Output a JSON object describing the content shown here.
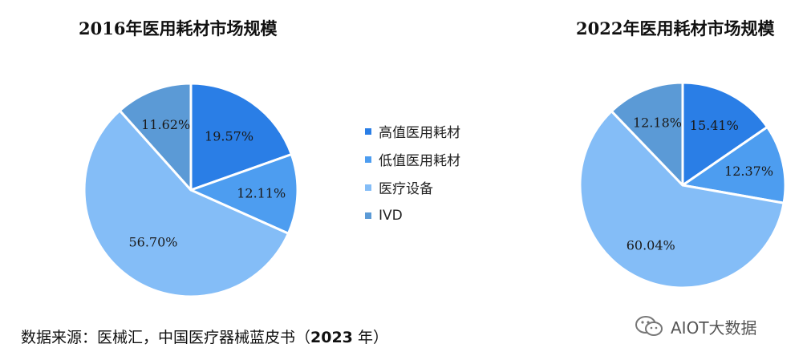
{
  "colors": {
    "high_value": "#2a7ee6",
    "low_value": "#4d9df0",
    "equipment": "#84bdf7",
    "ivd": "#5b9ad6"
  },
  "legend": [
    {
      "label": "高值医用耗材",
      "color": "#2a7ee6"
    },
    {
      "label": "低值医用耗材",
      "color": "#4d9df0"
    },
    {
      "label": "医疗设备",
      "color": "#84bdf7"
    },
    {
      "label": "IVD",
      "color": "#5b9ad6"
    }
  ],
  "chart_data": [
    {
      "type": "pie",
      "title": "2016年医用耗材市场规模",
      "categories": [
        "高值医用耗材",
        "低值医用耗材",
        "医疗设备",
        "IVD"
      ],
      "values": [
        19.57,
        12.11,
        56.7,
        11.62
      ],
      "labels": [
        "19.57%",
        "12.11%",
        "56.70%",
        "11.62%"
      ],
      "start": "12 o'clock",
      "direction": "clockwise"
    },
    {
      "type": "pie",
      "title": "2022年医用耗材市场规模",
      "categories": [
        "高值医用耗材",
        "低值医用耗材",
        "医疗设备",
        "IVD"
      ],
      "values": [
        15.41,
        12.37,
        60.04,
        12.18
      ],
      "labels": [
        "15.41%",
        "12.37%",
        "60.04%",
        "12.18%"
      ],
      "start": "12 o'clock",
      "direction": "clockwise"
    }
  ],
  "source": {
    "text": "数据来源：医械汇，中国医疗器械蓝皮书（",
    "year": "2023",
    "suffix": " 年）"
  },
  "watermark": {
    "icon": "wechat-icon",
    "text": "AIOT大数据"
  }
}
